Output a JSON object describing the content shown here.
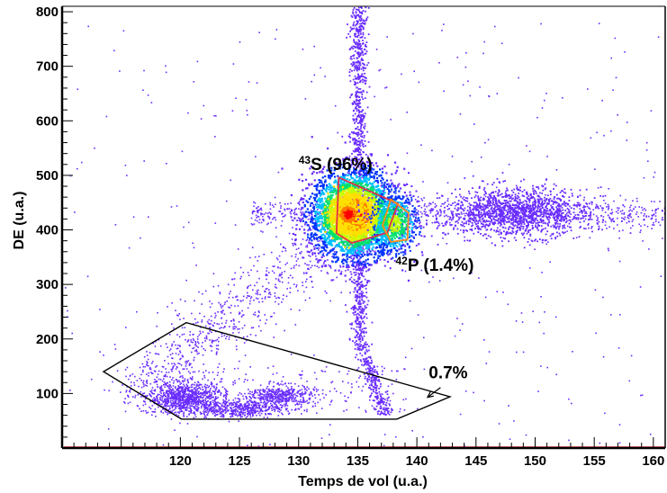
{
  "chart_data": {
    "type": "scatter",
    "title": "",
    "xlabel": "Temps de vol (u.a.)",
    "ylabel": "DE (u.a.)",
    "xlim": [
      110,
      161
    ],
    "ylim": [
      0,
      810
    ],
    "x_ticks": [
      120,
      125,
      130,
      135,
      140,
      145,
      150,
      155,
      160
    ],
    "y_ticks": [
      100,
      200,
      300,
      400,
      500,
      600,
      700,
      800
    ],
    "x_tick_labels": [
      "120",
      "125",
      "130",
      "135",
      "140",
      "145",
      "150",
      "155",
      "160"
    ],
    "y_tick_labels": [
      "100",
      "200",
      "300",
      "400",
      "500",
      "600",
      "700",
      "800"
    ],
    "grid": false,
    "point_color": "#6a2cff",
    "colormap": [
      "#7b2cff",
      "#0033ff",
      "#00c0ff",
      "#00e070",
      "#c0ff00",
      "#ffe000",
      "#ff7a00",
      "#ff0000"
    ],
    "clusters": [
      {
        "name": "43S",
        "center": [
          134.7,
          428
        ],
        "spread": [
          1.8,
          40
        ],
        "relative_density": 96
      },
      {
        "name": "42P",
        "center": [
          138.1,
          412
        ],
        "spread": [
          1.0,
          28
        ],
        "relative_density": 1.4
      },
      {
        "name": "halo-right",
        "center": [
          148.5,
          432
        ],
        "spread": [
          3.0,
          22
        ]
      },
      {
        "name": "horizontal-band",
        "x_range": [
          126,
          161
        ],
        "y_center": 428
      },
      {
        "name": "vertical-band",
        "x_center": 135.1,
        "y_range": [
          60,
          810
        ]
      },
      {
        "name": "low-energy-group-1",
        "center": [
          120.5,
          92
        ],
        "spread": [
          1.6,
          14
        ]
      },
      {
        "name": "low-energy-group-2",
        "center": [
          124.8,
          72
        ],
        "spread": [
          2.0,
          8
        ]
      },
      {
        "name": "low-energy-group-3",
        "center": [
          128.5,
          95
        ],
        "spread": [
          1.5,
          10
        ]
      }
    ],
    "gates": [
      {
        "name": "43S",
        "color": "#e0314b",
        "polygon": [
          [
            133.4,
            496
          ],
          [
            138.4,
            448
          ],
          [
            137.5,
            395
          ],
          [
            134.5,
            376
          ],
          [
            133.2,
            394
          ]
        ]
      },
      {
        "name": "42P",
        "color": "#ff8c1a",
        "polygon": [
          [
            137.8,
            456
          ],
          [
            139.3,
            431
          ],
          [
            139.2,
            382
          ],
          [
            137.8,
            378
          ],
          [
            137.1,
            408
          ]
        ]
      },
      {
        "name": "low-energy",
        "color": "#000000",
        "polygon": [
          [
            113.5,
            140
          ],
          [
            120.5,
            230
          ],
          [
            142.8,
            94
          ],
          [
            138.3,
            53
          ],
          [
            120.1,
            53
          ]
        ]
      }
    ],
    "annotations": [
      {
        "text_sup": "43",
        "text_main": "S (96%)",
        "x": 130.0,
        "y": 510
      },
      {
        "text_sup": "42",
        "text_main": "P (1.4%)",
        "x": 138.2,
        "y": 325
      },
      {
        "text_sup": "",
        "text_main": "0.7%",
        "x": 141.0,
        "y": 128
      }
    ],
    "arrow": {
      "from": [
        142.0,
        111
      ],
      "to": [
        140.9,
        93
      ]
    }
  }
}
